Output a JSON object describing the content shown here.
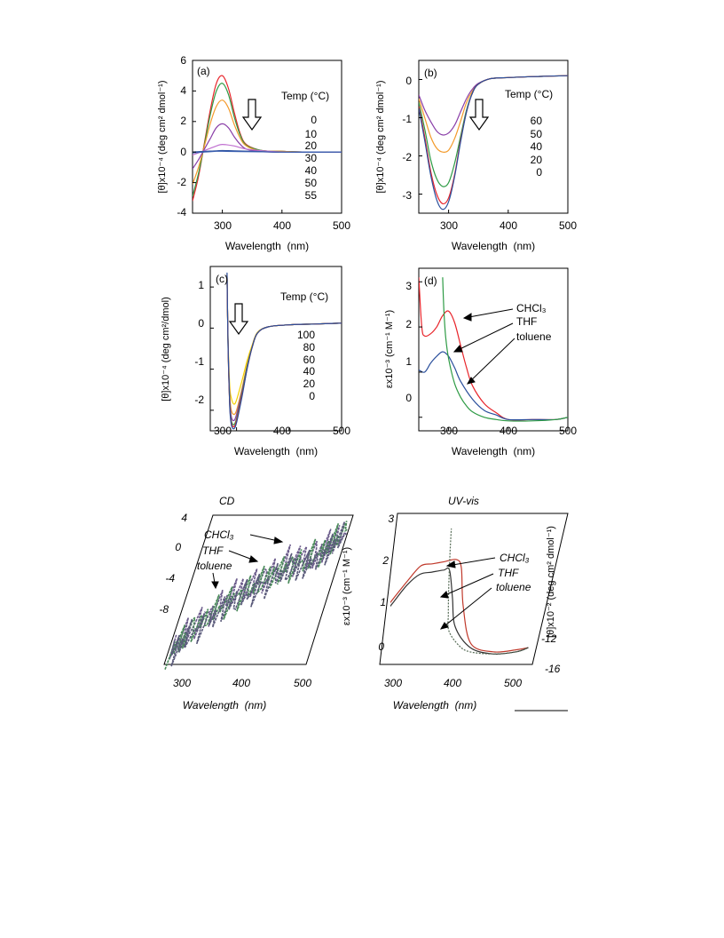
{
  "chart_data": [
    {
      "id": "a",
      "type": "line",
      "panel_label": "(a)",
      "xlabel": "Wavelength  (nm)",
      "ylabel": "[θ]x10⁻⁴ (deg cm² dmol⁻¹)",
      "xlim": [
        250,
        500
      ],
      "ylim": [
        -4,
        6
      ],
      "xticks": [
        "300",
        "400",
        "500"
      ],
      "yticks": [
        "-4",
        "-2",
        "0",
        "2",
        "4",
        "6"
      ],
      "legend_title": "Temp (°C)",
      "legend": [
        "0",
        "10",
        "20",
        "30",
        "40",
        "50",
        "55"
      ],
      "arrow": "down",
      "series": [
        {
          "name": "0",
          "color": "#e8242a",
          "x": [
            250,
            260,
            270,
            280,
            290,
            300,
            310,
            320,
            330,
            340,
            360,
            380,
            400,
            440,
            500
          ],
          "y": [
            -3.2,
            -1.6,
            0.6,
            2.8,
            4.5,
            5.0,
            4.2,
            2.6,
            1.2,
            0.5,
            0.15,
            0.05,
            0.05,
            0.0,
            0.0
          ]
        },
        {
          "name": "10",
          "color": "#2e9b45",
          "x": [
            250,
            260,
            270,
            280,
            290,
            300,
            310,
            320,
            330,
            340,
            360,
            380,
            400,
            440,
            500
          ],
          "y": [
            -2.9,
            -1.4,
            0.5,
            2.5,
            4.0,
            4.5,
            3.8,
            2.3,
            1.1,
            0.45,
            0.15,
            0.05,
            0.05,
            0.0,
            0.0
          ]
        },
        {
          "name": "20",
          "color": "#f39a2a",
          "x": [
            250,
            260,
            270,
            280,
            290,
            300,
            310,
            320,
            330,
            340,
            360,
            380,
            400,
            440,
            500
          ],
          "y": [
            -2.1,
            -1.0,
            0.4,
            1.9,
            3.0,
            3.4,
            2.9,
            1.8,
            0.9,
            0.4,
            0.1,
            0.05,
            0.05,
            0.0,
            0.0
          ]
        },
        {
          "name": "30",
          "color": "#8a3fa8",
          "x": [
            250,
            260,
            270,
            280,
            290,
            300,
            310,
            320,
            330,
            340,
            360,
            380,
            400,
            440,
            500
          ],
          "y": [
            -1.1,
            -0.5,
            0.2,
            0.9,
            1.6,
            1.85,
            1.6,
            1.0,
            0.5,
            0.2,
            0.05,
            0.0,
            0.0,
            0.0,
            0.0
          ]
        },
        {
          "name": "40",
          "color": "#c06fd0",
          "x": [
            250,
            270,
            290,
            300,
            320,
            340,
            380,
            420,
            500
          ],
          "y": [
            -0.2,
            0.1,
            0.4,
            0.5,
            0.4,
            0.2,
            0.05,
            0.0,
            0.0
          ]
        },
        {
          "name": "50",
          "color": "#2a4f9c",
          "x": [
            250,
            270,
            290,
            300,
            320,
            350,
            400,
            500
          ],
          "y": [
            0.0,
            0.05,
            0.08,
            0.1,
            0.08,
            0.05,
            0.0,
            0.0
          ]
        },
        {
          "name": "55",
          "color": "#3a5fb0",
          "x": [
            250,
            270,
            290,
            300,
            330,
            400,
            500
          ],
          "y": [
            -0.05,
            0.0,
            0.05,
            0.05,
            0.03,
            0.0,
            0.0
          ]
        }
      ]
    },
    {
      "id": "b",
      "type": "line",
      "panel_label": "(b)",
      "xlabel": "Wavelength  (nm)",
      "ylabel": "[θ]x10⁻⁴ (deg cm² dmol⁻¹)",
      "xlim": [
        250,
        500
      ],
      "ylim": [
        -3.5,
        0.5
      ],
      "xticks": [
        "300",
        "400",
        "500"
      ],
      "yticks": [
        "-3",
        "-2",
        "-1",
        "0"
      ],
      "legend_title": "Temp (°C)",
      "legend": [
        "60",
        "50",
        "40",
        "20",
        "0"
      ],
      "arrow": "down",
      "series": [
        {
          "name": "60",
          "color": "#8a3fa8",
          "x": [
            250,
            260,
            270,
            280,
            290,
            300,
            310,
            320,
            330,
            340,
            350,
            370,
            400,
            450,
            500
          ],
          "y": [
            -0.4,
            -0.8,
            -1.1,
            -1.35,
            -1.45,
            -1.4,
            -1.2,
            -0.85,
            -0.5,
            -0.25,
            -0.1,
            0.02,
            0.05,
            0.08,
            0.1
          ]
        },
        {
          "name": "50",
          "color": "#f39a2a",
          "x": [
            250,
            260,
            270,
            280,
            290,
            300,
            310,
            320,
            330,
            340,
            350,
            370,
            400,
            450,
            500
          ],
          "y": [
            -0.5,
            -1.0,
            -1.5,
            -1.8,
            -1.9,
            -1.85,
            -1.55,
            -1.1,
            -0.6,
            -0.3,
            -0.12,
            0.02,
            0.05,
            0.08,
            0.1
          ]
        },
        {
          "name": "40",
          "color": "#2e9b45",
          "x": [
            250,
            260,
            270,
            280,
            290,
            300,
            310,
            320,
            330,
            340,
            350,
            370,
            400,
            450,
            500
          ],
          "y": [
            -0.6,
            -1.3,
            -2.1,
            -2.6,
            -2.8,
            -2.7,
            -2.2,
            -1.5,
            -0.8,
            -0.35,
            -0.12,
            0.02,
            0.05,
            0.08,
            0.1
          ]
        },
        {
          "name": "20",
          "color": "#e8242a",
          "x": [
            250,
            260,
            270,
            280,
            290,
            300,
            310,
            320,
            330,
            340,
            350,
            370,
            400,
            450,
            500
          ],
          "y": [
            -0.7,
            -1.5,
            -2.4,
            -3.0,
            -3.25,
            -3.1,
            -2.5,
            -1.6,
            -0.85,
            -0.35,
            -0.12,
            0.02,
            0.05,
            0.08,
            0.1
          ]
        },
        {
          "name": "0",
          "color": "#2a4f9c",
          "x": [
            250,
            260,
            270,
            280,
            290,
            300,
            310,
            320,
            330,
            340,
            350,
            370,
            400,
            450,
            500
          ],
          "y": [
            -0.75,
            -1.6,
            -2.5,
            -3.15,
            -3.4,
            -3.2,
            -2.55,
            -1.65,
            -0.85,
            -0.35,
            -0.12,
            0.02,
            0.05,
            0.08,
            0.1
          ]
        }
      ]
    },
    {
      "id": "c",
      "type": "line",
      "panel_label": "(c)",
      "xlabel": "Wavelength  (nm)",
      "ylabel": "[θ]x10⁻⁴ (deg cm²/dmol)",
      "xlim": [
        250,
        500
      ],
      "ylim": [
        -2.5,
        1.5
      ],
      "xticks": [
        "300",
        "400",
        "500"
      ],
      "yticks": [
        "-2",
        "-1",
        "0",
        "1"
      ],
      "legend_title": "Temp (°C)",
      "legend": [
        "100",
        "80",
        "60",
        "40",
        "20",
        "0"
      ],
      "arrow": "down",
      "series": [
        {
          "name": "100",
          "color": "#f5d000",
          "x": [
            282,
            284,
            287,
            290,
            295,
            300,
            310,
            320,
            330,
            340,
            360,
            400,
            450,
            500
          ],
          "y": [
            1.2,
            -0.3,
            -1.4,
            -1.7,
            -1.85,
            -1.75,
            -1.3,
            -0.8,
            -0.4,
            -0.1,
            0.03,
            0.08,
            0.1,
            0.12
          ]
        },
        {
          "name": "80",
          "color": "#f39a2a",
          "x": [
            282,
            284,
            287,
            290,
            295,
            300,
            310,
            320,
            330,
            340,
            360,
            400,
            450,
            500
          ],
          "y": [
            1.2,
            -0.4,
            -1.6,
            -2.0,
            -2.1,
            -2.0,
            -1.5,
            -0.9,
            -0.45,
            -0.12,
            0.03,
            0.08,
            0.1,
            0.12
          ]
        },
        {
          "name": "60",
          "color": "#8a3fa8",
          "x": [
            282,
            284,
            287,
            290,
            295,
            300,
            310,
            320,
            330,
            340,
            360,
            400,
            450,
            500
          ],
          "y": [
            1.25,
            -0.4,
            -1.7,
            -2.15,
            -2.25,
            -2.1,
            -1.55,
            -0.95,
            -0.45,
            -0.12,
            0.03,
            0.08,
            0.1,
            0.12
          ]
        },
        {
          "name": "40",
          "color": "#2e9b45",
          "x": [
            282,
            284,
            287,
            290,
            295,
            300,
            310,
            320,
            330,
            340,
            360,
            400,
            450,
            500
          ],
          "y": [
            1.3,
            -0.5,
            -1.8,
            -2.25,
            -2.35,
            -2.2,
            -1.6,
            -0.95,
            -0.45,
            -0.12,
            0.03,
            0.08,
            0.1,
            0.12
          ]
        },
        {
          "name": "20",
          "color": "#e8242a",
          "x": [
            282,
            284,
            287,
            290,
            295,
            300,
            310,
            320,
            330,
            340,
            360,
            400,
            450,
            500
          ],
          "y": [
            1.3,
            -0.5,
            -1.85,
            -2.3,
            -2.4,
            -2.25,
            -1.65,
            -1.0,
            -0.45,
            -0.12,
            0.03,
            0.08,
            0.1,
            0.12
          ]
        },
        {
          "name": "0",
          "color": "#2a4f9c",
          "x": [
            282,
            284,
            287,
            290,
            295,
            300,
            310,
            320,
            330,
            340,
            360,
            400,
            450,
            500
          ],
          "y": [
            1.35,
            -0.5,
            -1.9,
            -2.35,
            -2.45,
            -2.3,
            -1.7,
            -1.0,
            -0.45,
            -0.12,
            0.03,
            0.08,
            0.1,
            0.12
          ]
        }
      ]
    },
    {
      "id": "d",
      "type": "line",
      "panel_label": "(d)",
      "xlabel": "Wavelength  (nm)",
      "ylabel": "εx10⁻³ (cm⁻¹ M⁻¹)",
      "xlim": [
        250,
        500
      ],
      "ylim": [
        -0.3,
        3.3
      ],
      "xticks": [
        "300",
        "400",
        "500"
      ],
      "yticks": [
        "0",
        "1",
        "2",
        "3"
      ],
      "legend": [
        "CHCl₃",
        "THF",
        "toluene"
      ],
      "series": [
        {
          "name": "CHCl₃",
          "color": "#e8242a",
          "x": [
            250,
            255,
            260,
            270,
            280,
            290,
            300,
            310,
            320,
            330,
            340,
            360,
            380,
            400,
            440,
            480,
            500
          ],
          "y": [
            3.1,
            2.0,
            1.8,
            1.85,
            2.0,
            2.25,
            2.35,
            2.1,
            1.6,
            1.1,
            0.7,
            0.3,
            0.1,
            -0.05,
            -0.05,
            -0.05,
            0.0
          ]
        },
        {
          "name": "THF",
          "color": "#2a4f9c",
          "x": [
            250,
            260,
            270,
            280,
            290,
            300,
            310,
            320,
            340,
            360,
            380,
            400,
            440,
            480,
            500
          ],
          "y": [
            1.05,
            1.0,
            1.2,
            1.35,
            1.45,
            1.35,
            1.1,
            0.8,
            0.4,
            0.15,
            0.05,
            -0.05,
            -0.05,
            -0.05,
            0.0
          ]
        },
        {
          "name": "toluene",
          "color": "#2e9b45",
          "x": [
            290,
            292,
            295,
            300,
            310,
            320,
            330,
            340,
            360,
            380,
            400,
            440,
            480,
            500
          ],
          "y": [
            3.1,
            2.4,
            1.8,
            1.3,
            0.75,
            0.45,
            0.25,
            0.12,
            0.0,
            -0.05,
            -0.08,
            -0.08,
            -0.05,
            0.0
          ]
        }
      ]
    },
    {
      "id": "e",
      "type": "line",
      "title": "CD",
      "xlabel": "Wavelength  (nm)",
      "xlim": [
        270,
        550
      ],
      "ylim": [
        -12,
        4
      ],
      "xticks": [
        "300",
        "400",
        "500"
      ],
      "yticks": [
        "4",
        "0",
        "-4",
        "-8"
      ],
      "legend": [
        "CHCl₃",
        "THF",
        "toluene"
      ],
      "series": [
        {
          "name": "CHCl₃",
          "color": "#6a5a8a",
          "x": [
            275,
            300,
            350,
            400,
            450,
            500,
            545
          ],
          "y": [
            -10,
            -8,
            -5,
            -3,
            -1,
            0,
            2
          ]
        },
        {
          "name": "THF",
          "color": "#4a8a5a",
          "x": [
            275,
            300,
            350,
            400,
            450,
            500,
            545
          ],
          "y": [
            -10.5,
            -8.5,
            -5.5,
            -3.5,
            -1.5,
            -0.5,
            2.5
          ]
        },
        {
          "name": "toluene",
          "color": "#5a5a7a",
          "x": [
            275,
            300,
            350,
            400,
            450,
            500,
            545
          ],
          "y": [
            -11,
            -9,
            -6,
            -4,
            -2,
            -1,
            2
          ]
        }
      ]
    },
    {
      "id": "f",
      "type": "line",
      "title": "UV-vis",
      "xlabel": "Wavelength  (nm)",
      "ylabel": "εx10⁻³ (cm⁻¹ M⁻¹)",
      "right_ylabel": "[θ]x10⁻² (deg cm² dmol⁻¹)",
      "xlim": [
        250,
        510
      ],
      "ylim": [
        -0.4,
        3.2
      ],
      "xticks": [
        "300",
        "400",
        "500"
      ],
      "yticks": [
        "0",
        "1",
        "2",
        "3"
      ],
      "right_yticks": [
        "-12",
        "-16"
      ],
      "legend": [
        "CHCl₃",
        "THF",
        "toluene"
      ],
      "series": [
        {
          "name": "CHCl₃",
          "color": "#c0392b",
          "x": [
            250,
            260,
            280,
            300,
            320,
            340,
            360,
            370,
            380,
            400,
            440,
            480,
            500
          ],
          "y": [
            1.0,
            1.2,
            1.6,
            1.95,
            2.0,
            2.05,
            2.1,
            1.9,
            1.0,
            0.1,
            -0.1,
            -0.05,
            0.0
          ]
        },
        {
          "name": "THF",
          "color": "#333333",
          "x": [
            250,
            260,
            280,
            300,
            320,
            340,
            350,
            360,
            370,
            400,
            440,
            480,
            500
          ],
          "y": [
            0.9,
            1.1,
            1.5,
            1.75,
            1.8,
            1.85,
            1.85,
            1.2,
            0.5,
            0.0,
            -0.15,
            -0.1,
            0.0
          ]
        },
        {
          "name": "toluene",
          "color": "#556b55",
          "x": [
            345,
            348,
            352,
            356,
            360,
            380,
            400,
            440,
            480,
            500
          ],
          "y": [
            3.0,
            2.2,
            1.4,
            0.8,
            0.4,
            0.05,
            -0.1,
            -0.15,
            -0.1,
            0.0
          ]
        }
      ]
    }
  ]
}
